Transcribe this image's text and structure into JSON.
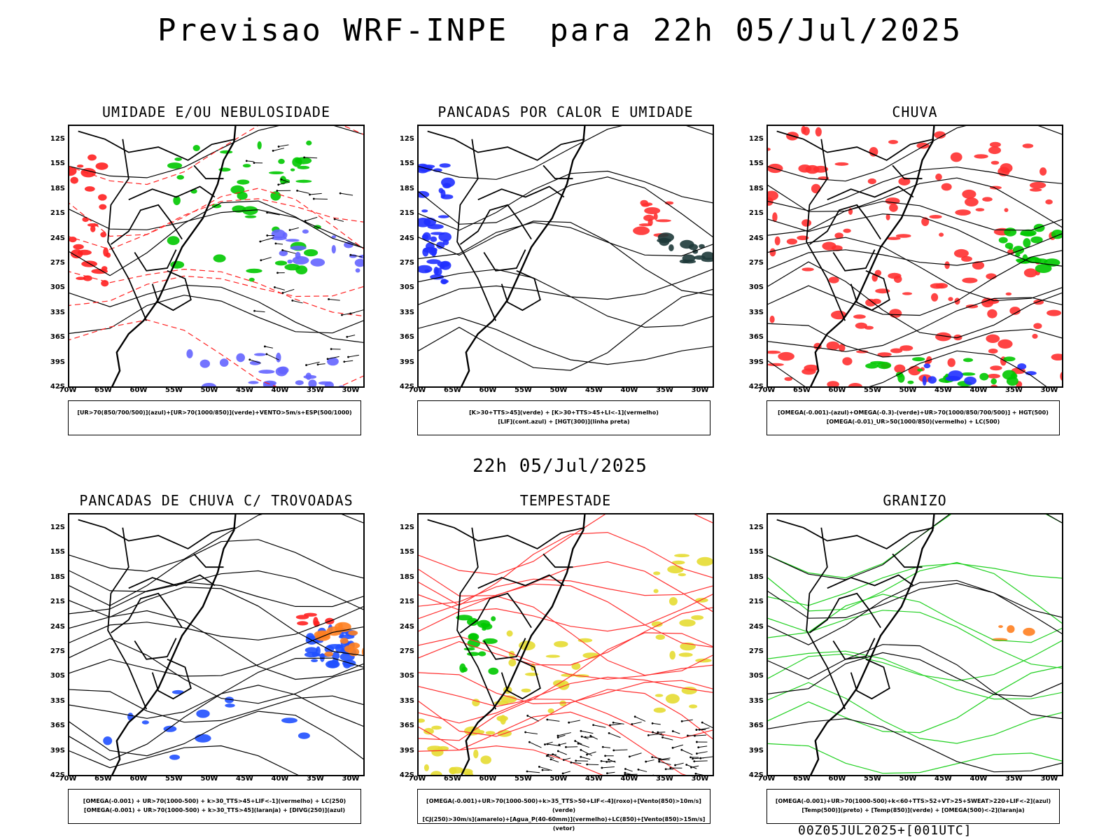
{
  "title": "Previsao WRF-INPE  para 22h 05/Jul/2025",
  "subtitle": "22h 05/Jul/2025",
  "footer": "00Z05JUL2025+[001UTC]",
  "lat_labels": [
    "12S",
    "15S",
    "18S",
    "21S",
    "24S",
    "27S",
    "30S",
    "33S",
    "36S",
    "39S",
    "42S"
  ],
  "lon_labels": [
    "70W",
    "65W",
    "60W",
    "55W",
    "50W",
    "45W",
    "40W",
    "35W",
    "30W"
  ],
  "panels": [
    {
      "id": "umidade",
      "title": "UMIDADE E/OU NEBULOSIDADE",
      "legend": [
        "[UR>70(850/700/500)](azul)+[UR>70(1000/850)](verde)+VENTO>5m/s+ESP(500/1000)"
      ],
      "colors": {
        "primary": "#ff2020",
        "secondary": "#00c800",
        "tertiary": "#6464ff"
      }
    },
    {
      "id": "pancadas-calor",
      "title": "PANCADAS POR CALOR E UMIDADE",
      "legend": [
        "[K>30+TTS>45](verde) + [K>30+TTS>45+LI<-1](vermelho)",
        "[LIF](cont.azul) + [HGT(300)](linha preta)"
      ],
      "colors": {
        "primary": "#2030ff",
        "secondary": "#ff3030",
        "tertiary": "#1e3a3a"
      }
    },
    {
      "id": "chuva",
      "title": "CHUVA",
      "legend": [
        "[OMEGA(-0.001)-(azul)+OMEGA(-0.3)-(verde)+UR>70(1000/850/700/500)] + HGT(500)",
        "[OMEGA(-0.01)_UR>50(1000/850)(vermelho) + LC(500)"
      ],
      "colors": {
        "primary": "#ff3030",
        "secondary": "#00c800",
        "tertiary": "#2030ff"
      }
    },
    {
      "id": "trovoadas",
      "title": "PANCADAS DE CHUVA C/ TROVOADAS",
      "legend": [
        "[OMEGA(-0.001) + UR>70(1000-500) + k>30_TTS>45+LIF<-1](vermelho) + LC(250)",
        "[OMEGA(-0.001) + UR>70(1000-500) + k>30_TTS>45](laranja) + [DIVG(250)](azul)"
      ],
      "colors": {
        "primary": "#2050ff",
        "secondary": "#ff8020",
        "tertiary": "#ff2020"
      }
    },
    {
      "id": "tempestade",
      "title": "TEMPESTADE",
      "legend": [
        "[OMEGA(-0.001)+UR>70(1000-500)+k>35_TTS>50+LIF<-4](roxo)+[Vento(850)>10m/s](verde)",
        "[CJ(250)>30m/s](amarelo)+[Agua_P(40-60mm)](vermelho)+LC(850)+[Vento(850)>15m/s](vetor)"
      ],
      "colors": {
        "primary": "#e6dc32",
        "secondary": "#00c800",
        "tertiary": "#ff3030"
      }
    },
    {
      "id": "granizo",
      "title": "GRANIZO",
      "legend": [
        "[OMEGA(-0.001)+UR>70(1000-500)+k<60+TTS>52+VT>25+SWEAT>220+LIF<-2](azul)",
        "[Temp(500)](preto) + [Temp(850)](verde) + [OMEGA(500)<-2](laranja)"
      ],
      "colors": {
        "primary": "#20d020",
        "secondary": "#ff8020",
        "tertiary": "#000000"
      }
    }
  ]
}
